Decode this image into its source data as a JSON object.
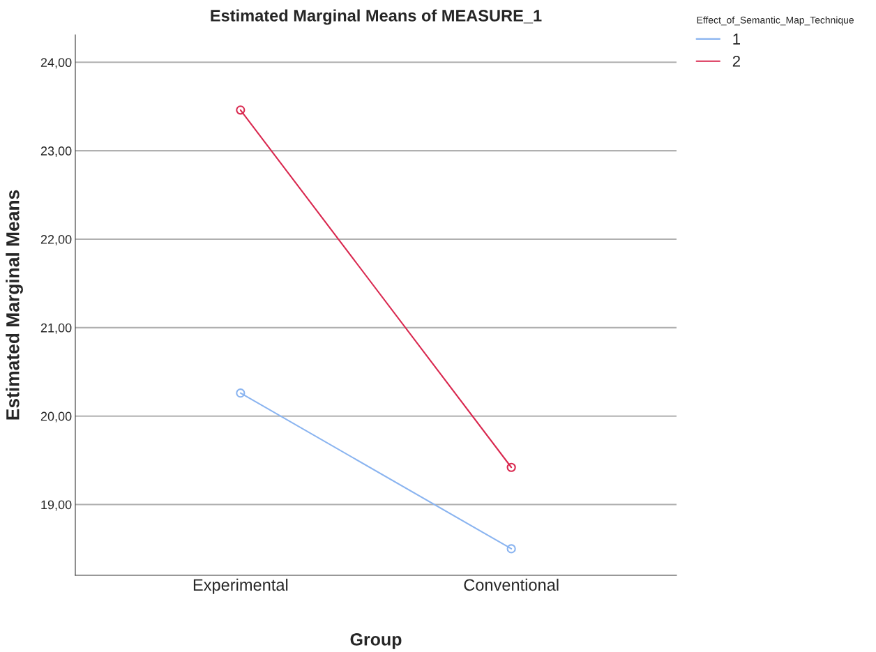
{
  "chart_data": {
    "type": "line",
    "title": "Estimated Marginal Means of MEASURE_1",
    "xlabel": "Group",
    "ylabel": "Estimated Marginal Means",
    "legend_title": "Effect_of_Semantic_Map_Technique",
    "categories": [
      "Experimental",
      "Conventional"
    ],
    "series": [
      {
        "name": "1",
        "color": "#8ab4f0",
        "values": [
          20.26,
          18.5
        ]
      },
      {
        "name": "2",
        "color": "#d9284f",
        "values": [
          23.46,
          19.42
        ]
      }
    ],
    "ylim": [
      18.2,
      24.31
    ],
    "yticks": [
      {
        "value": 19,
        "label": "19,00"
      },
      {
        "value": 20,
        "label": "20,00"
      },
      {
        "value": 21,
        "label": "21,00"
      },
      {
        "value": 22,
        "label": "22,00"
      },
      {
        "value": 23,
        "label": "23,00"
      },
      {
        "value": 24,
        "label": "24,00"
      }
    ],
    "grid": "y",
    "legend": "top right",
    "marker": "circle",
    "line_style": "solid"
  }
}
